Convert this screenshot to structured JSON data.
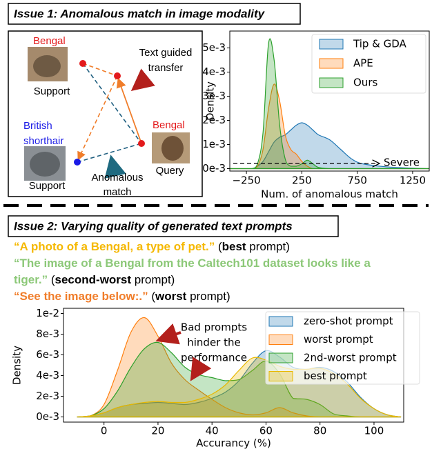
{
  "issue1": {
    "title": "Issue 1: Anomalous match in image modality"
  },
  "diagram": {
    "support1_class": "Bengal",
    "support1_label": "Support",
    "support2_class": [
      "British",
      "shorthair"
    ],
    "support2_label": "Support",
    "query_class": "Bengal",
    "query_label": "Query",
    "transfer_note": [
      "Text guided",
      "transfer"
    ],
    "anomaly_note": [
      "Anomalous",
      "match"
    ]
  },
  "chart_data": [
    {
      "type": "area",
      "ylabel": "Density",
      "xlabel": "Num. of anomalous match",
      "annotation": "Severe",
      "legend": "upper right",
      "x": [
        -400,
        -300,
        -200,
        -150,
        -100,
        -50,
        0,
        50,
        100,
        150,
        200,
        250,
        300,
        350,
        400,
        500,
        600,
        700,
        800,
        1000,
        1200,
        1400
      ],
      "series": [
        {
          "name": "Tip & GDA",
          "color": "#1f77b4",
          "values": [
            0,
            0,
            0,
            0.0001,
            0.0003,
            0.0007,
            0.0011,
            0.0013,
            0.0014,
            0.0016,
            0.0018,
            0.0019,
            0.0018,
            0.0016,
            0.0014,
            0.0012,
            0.0008,
            0.0004,
            0.0002,
            8e-05,
            3e-05,
            0
          ]
        },
        {
          "name": "APE",
          "color": "#ff7f0e",
          "values": [
            0,
            0,
            0,
            0.0001,
            0.0008,
            0.0025,
            0.0035,
            0.0028,
            0.0014,
            0.0008,
            0.0006,
            0.0003,
            0.0001,
            0,
            0,
            0,
            0,
            0,
            0,
            0,
            0,
            0
          ]
        },
        {
          "name": "Ours",
          "color": "#2ca02c",
          "values": [
            0,
            0,
            0,
            0.0002,
            0.0015,
            0.0052,
            0.0045,
            0.0018,
            0.0004,
            0.0001,
            0.0001,
            0.0002,
            0.00035,
            0.0002,
            5e-05,
            0,
            0,
            0,
            0,
            0,
            0,
            0
          ]
        }
      ],
      "xlim": [
        -400,
        1400
      ],
      "xticks": [
        {
          "value": -250,
          "label": "−250"
        },
        250,
        750,
        1250
      ],
      "ylim": [
        -0.0001,
        0.0057
      ],
      "yticks": [
        {
          "value": 0,
          "label": "0e-3"
        },
        {
          "value": 0.001,
          "label": "1e-3"
        },
        {
          "value": 0.002,
          "label": "2e-3"
        },
        {
          "value": 0.003,
          "label": "3e-3"
        },
        {
          "value": 0.004,
          "label": "4e-3"
        },
        {
          "value": 0.005,
          "label": "5e-3"
        }
      ]
    },
    {
      "type": "area",
      "ylabel": "Density",
      "xlabel": "Accurancy (%)",
      "annotation": [
        "Bad prompts",
        "hinder the",
        "performance"
      ],
      "legend": "upper right",
      "x": [
        -10,
        -5,
        0,
        5,
        10,
        15,
        20,
        25,
        30,
        35,
        40,
        45,
        50,
        55,
        60,
        65,
        70,
        75,
        80,
        85,
        90,
        95,
        100,
        105,
        110
      ],
      "series": [
        {
          "name": "zero-shot prompt",
          "color": "#1f77b4",
          "values": [
            0,
            0.0001,
            0.0004,
            0.0009,
            0.0012,
            0.0013,
            0.0014,
            0.0013,
            0.0012,
            0.0014,
            0.0018,
            0.0024,
            0.0035,
            0.0052,
            0.0064,
            0.0058,
            0.0048,
            0.0046,
            0.0048,
            0.0044,
            0.0034,
            0.0019,
            0.0008,
            0.0002,
            0
          ]
        },
        {
          "name": "worst prompt",
          "color": "#ff7f0e",
          "values": [
            0,
            0.0001,
            0.0012,
            0.0045,
            0.0082,
            0.0096,
            0.0078,
            0.0052,
            0.0036,
            0.0026,
            0.0017,
            0.0009,
            0.0004,
            0.0002,
            0.0004,
            0.0009,
            0.0004,
            0.0001,
            0,
            0,
            0,
            0,
            0,
            0,
            0
          ]
        },
        {
          "name": "2nd-worst prompt",
          "color": "#2ca02c",
          "values": [
            0,
            0.0001,
            0.0008,
            0.0025,
            0.0048,
            0.0066,
            0.0072,
            0.0062,
            0.0048,
            0.0041,
            0.0038,
            0.0035,
            0.0036,
            0.0045,
            0.0054,
            0.0042,
            0.0018,
            0.0017,
            0.0012,
            0.0003,
            0.0001,
            0,
            0,
            0,
            0
          ]
        },
        {
          "name": "best prompt",
          "color": "#e8b800",
          "values": [
            0,
            0.0001,
            0.0004,
            0.0009,
            0.0012,
            0.0014,
            0.0015,
            0.0014,
            0.0014,
            0.0017,
            0.0022,
            0.0031,
            0.0045,
            0.0057,
            0.0055,
            0.0049,
            0.0046,
            0.0046,
            0.0047,
            0.0042,
            0.0032,
            0.0018,
            0.0008,
            0.0002,
            0
          ]
        }
      ],
      "xlim": [
        -15,
        111
      ],
      "xticks": [
        0,
        20,
        40,
        60,
        80,
        100
      ],
      "ylim": [
        -0.0005,
        0.0105
      ],
      "yticks": [
        {
          "value": 0,
          "label": "0e-3"
        },
        {
          "value": 0.002,
          "label": "2e-3"
        },
        {
          "value": 0.004,
          "label": "4e-3"
        },
        {
          "value": 0.006,
          "label": "6e-3"
        },
        {
          "value": 0.008,
          "label": "8e-3"
        },
        {
          "value": 0.01,
          "label": "1e-2"
        }
      ]
    }
  ],
  "issue2": {
    "title": "Issue 2: Varying quality of generated text prompts",
    "prompts": [
      {
        "quote": "“A photo of a Bengal, a type of pet.”",
        "note": [
          " (",
          "best",
          " prompt)"
        ]
      },
      {
        "quote": "“The image of a Bengal from the Caltech101 dataset looks like a tiger.”",
        "note": [
          " (",
          "second-worst",
          " prompt)"
        ]
      },
      {
        "quote": "“See the image below:.”",
        "note": [
          " (",
          "worst",
          " prompt)"
        ]
      }
    ]
  }
}
